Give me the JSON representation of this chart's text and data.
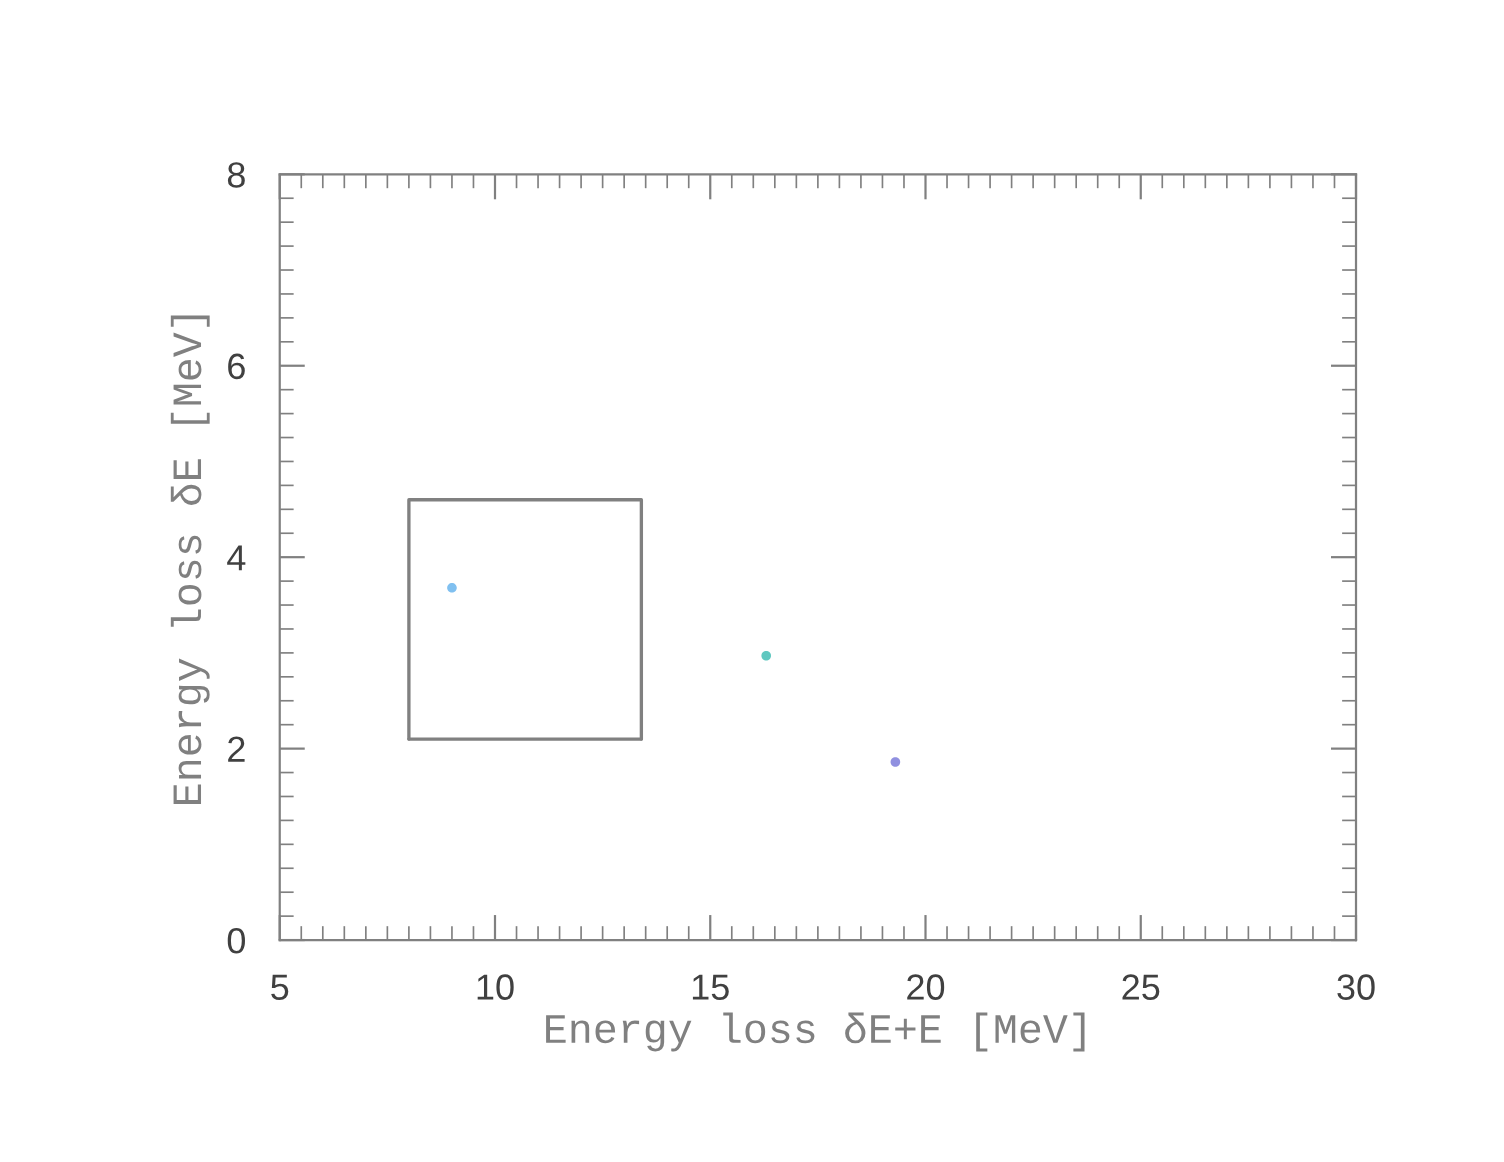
{
  "chart_data": {
    "type": "scatter",
    "xlabel": "Energy loss δE+E [MeV]",
    "ylabel": "Energy loss δE [MeV]",
    "xlim": [
      5,
      30
    ],
    "xticks": [
      5,
      10,
      15,
      20,
      25,
      30
    ],
    "ylim": [
      0,
      8
    ],
    "yticks": [
      0,
      2,
      4,
      6,
      8
    ],
    "grid": false,
    "series": [
      {
        "x": [
          9.0,
          16.3,
          19.3
        ],
        "values": [
          3.68,
          2.97,
          1.86
        ],
        "colors": [
          "#80c0f0",
          "#60c8c0",
          "#9090e0"
        ],
        "marker": "circle"
      },
      {
        "type": "line",
        "x": [
          8.0,
          8.0,
          13.4,
          13.4
        ],
        "values": [
          2.1,
          4.6,
          4.6,
          2.1
        ],
        "color": "#808080",
        "marker": "none",
        "line_style": "solid"
      },
      {
        "type": "line",
        "x": [
          8.0,
          13.4
        ],
        "values": [
          2.1,
          2.1
        ],
        "color": "#808080",
        "marker": "none",
        "line_style": "solid"
      }
    ]
  }
}
